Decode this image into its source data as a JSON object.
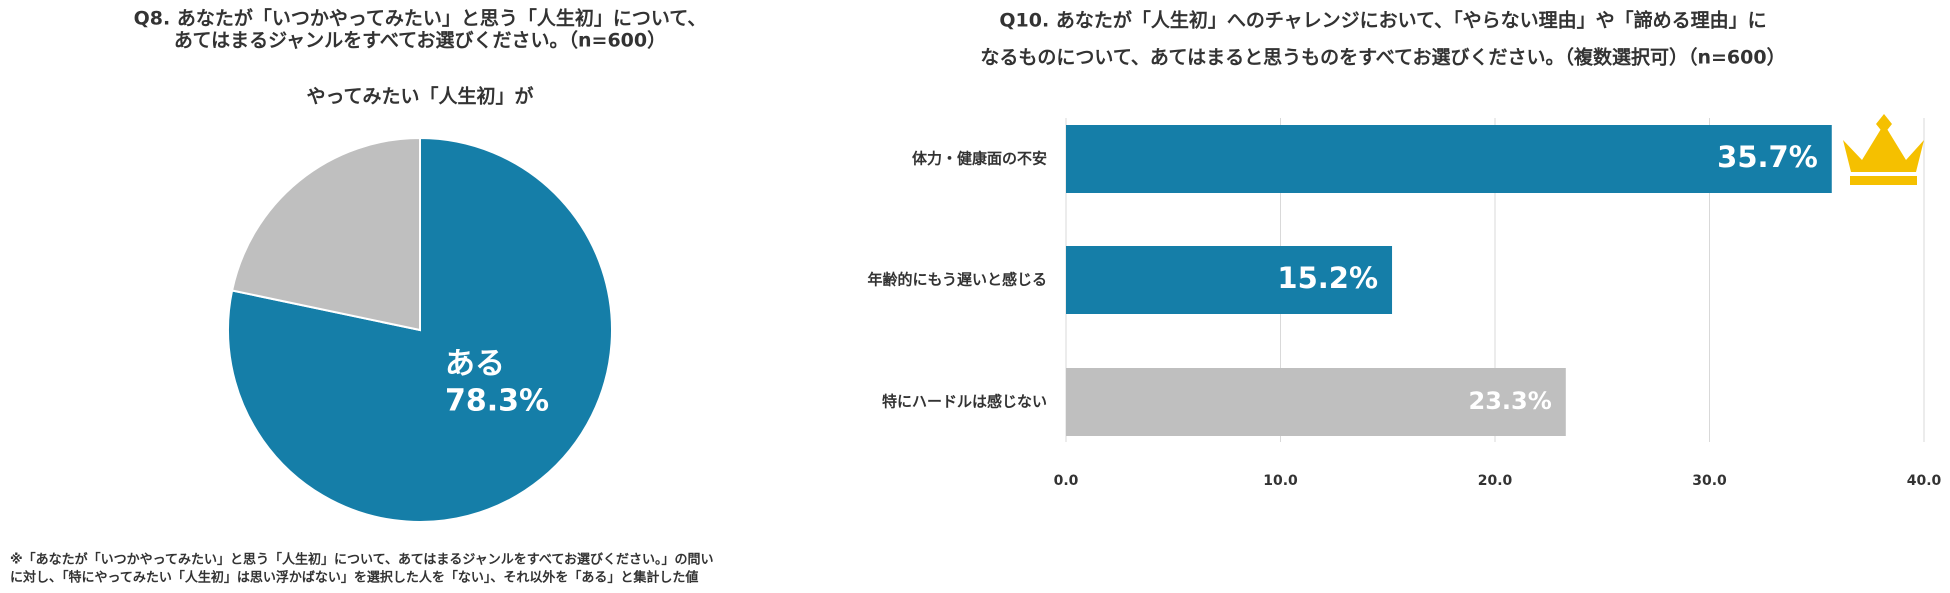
{
  "chart_data": [
    {
      "type": "pie",
      "title": [
        "Q8. あなたが「いつかやってみたい」と思う「人生初」について、",
        "あてはまるジャンルをすべてお選びください。（n=600）"
      ],
      "subtitle": "やってみたい「人生初」が",
      "categories": [
        "ある",
        null
      ],
      "values": [
        78.3,
        21.7
      ],
      "value_labels": [
        "78.3%",
        null
      ],
      "colors": [
        "#157ea8",
        "#bfbfbf"
      ],
      "annotations": [
        "※「あなたが「いつかやってみたい」と思う「人生初」について、あてはまるジャンルをすべてお選びください。」の問い",
        "に対し、「特にやってみたい「人生初」は思い浮かばない」を選択した人を「ない」、それ以外を「ある」と集計した値"
      ]
    },
    {
      "type": "bar",
      "title": [
        "Q10. あなたが「人生初」へのチャレンジにおいて、「やらない理由」や「諦める理由」に",
        "なるものについて、あてはまると思うものをすべてお選びください。（複数選択可）（n=600）"
      ],
      "categories": [
        "体力・健康面の不安",
        "年齢的にもう遅いと感じる",
        "特にハードルは感じない"
      ],
      "values": [
        35.7,
        15.2,
        23.3
      ],
      "value_labels": [
        "35.7%",
        "15.2%",
        "23.3%"
      ],
      "colors": [
        "#157ea8",
        "#157ea8",
        "#bfbfbf"
      ],
      "xlim": [
        0,
        40
      ],
      "xticks": [
        {
          "value": 0,
          "label": "0.0"
        },
        {
          "value": 10,
          "label": "10.0"
        },
        {
          "value": 20,
          "label": "20.0"
        },
        {
          "value": 30,
          "label": "30.0"
        },
        {
          "value": 40,
          "label": "40.0"
        }
      ],
      "grid": true
    }
  ]
}
